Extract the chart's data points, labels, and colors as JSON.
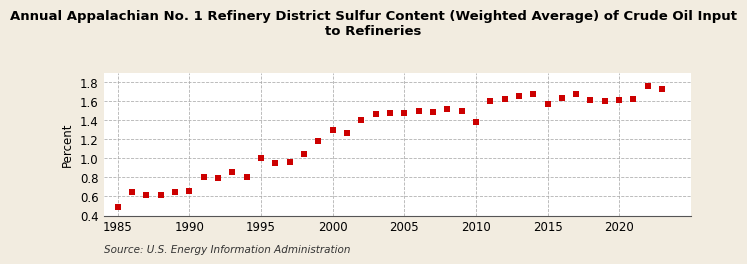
{
  "title": "Annual Appalachian No. 1 Refinery District Sulfur Content (Weighted Average) of Crude Oil Input\nto Refineries",
  "ylabel": "Percent",
  "xlabel": "",
  "source": "Source: U.S. Energy Information Administration",
  "years": [
    1985,
    1986,
    1987,
    1988,
    1989,
    1990,
    1991,
    1992,
    1993,
    1994,
    1995,
    1996,
    1997,
    1998,
    1999,
    2000,
    2001,
    2002,
    2003,
    2004,
    2005,
    2006,
    2007,
    2008,
    2009,
    2010,
    2011,
    2012,
    2013,
    2014,
    2015,
    2016,
    2017,
    2018,
    2019,
    2020,
    2021,
    2022,
    2023
  ],
  "values": [
    0.49,
    0.65,
    0.61,
    0.61,
    0.65,
    0.66,
    0.8,
    0.79,
    0.86,
    0.8,
    1.0,
    0.95,
    0.96,
    1.05,
    1.18,
    1.3,
    1.27,
    1.4,
    1.46,
    1.47,
    1.48,
    1.5,
    1.49,
    1.52,
    1.5,
    1.38,
    1.6,
    1.62,
    1.65,
    1.67,
    1.57,
    1.63,
    1.67,
    1.61,
    1.6,
    1.61,
    1.62,
    1.76,
    1.73
  ],
  "ylim": [
    0.4,
    1.9
  ],
  "yticks": [
    0.4,
    0.6,
    0.8,
    1.0,
    1.2,
    1.4,
    1.6,
    1.8
  ],
  "xticks": [
    1985,
    1990,
    1995,
    2000,
    2005,
    2010,
    2015,
    2020
  ],
  "marker_color": "#cc0000",
  "marker": "s",
  "marker_size": 4,
  "bg_color": "#f2ece0",
  "plot_bg_color": "#ffffff",
  "grid_color": "#aaaaaa",
  "title_fontsize": 9.5,
  "axis_fontsize": 8.5,
  "source_fontsize": 7.5
}
